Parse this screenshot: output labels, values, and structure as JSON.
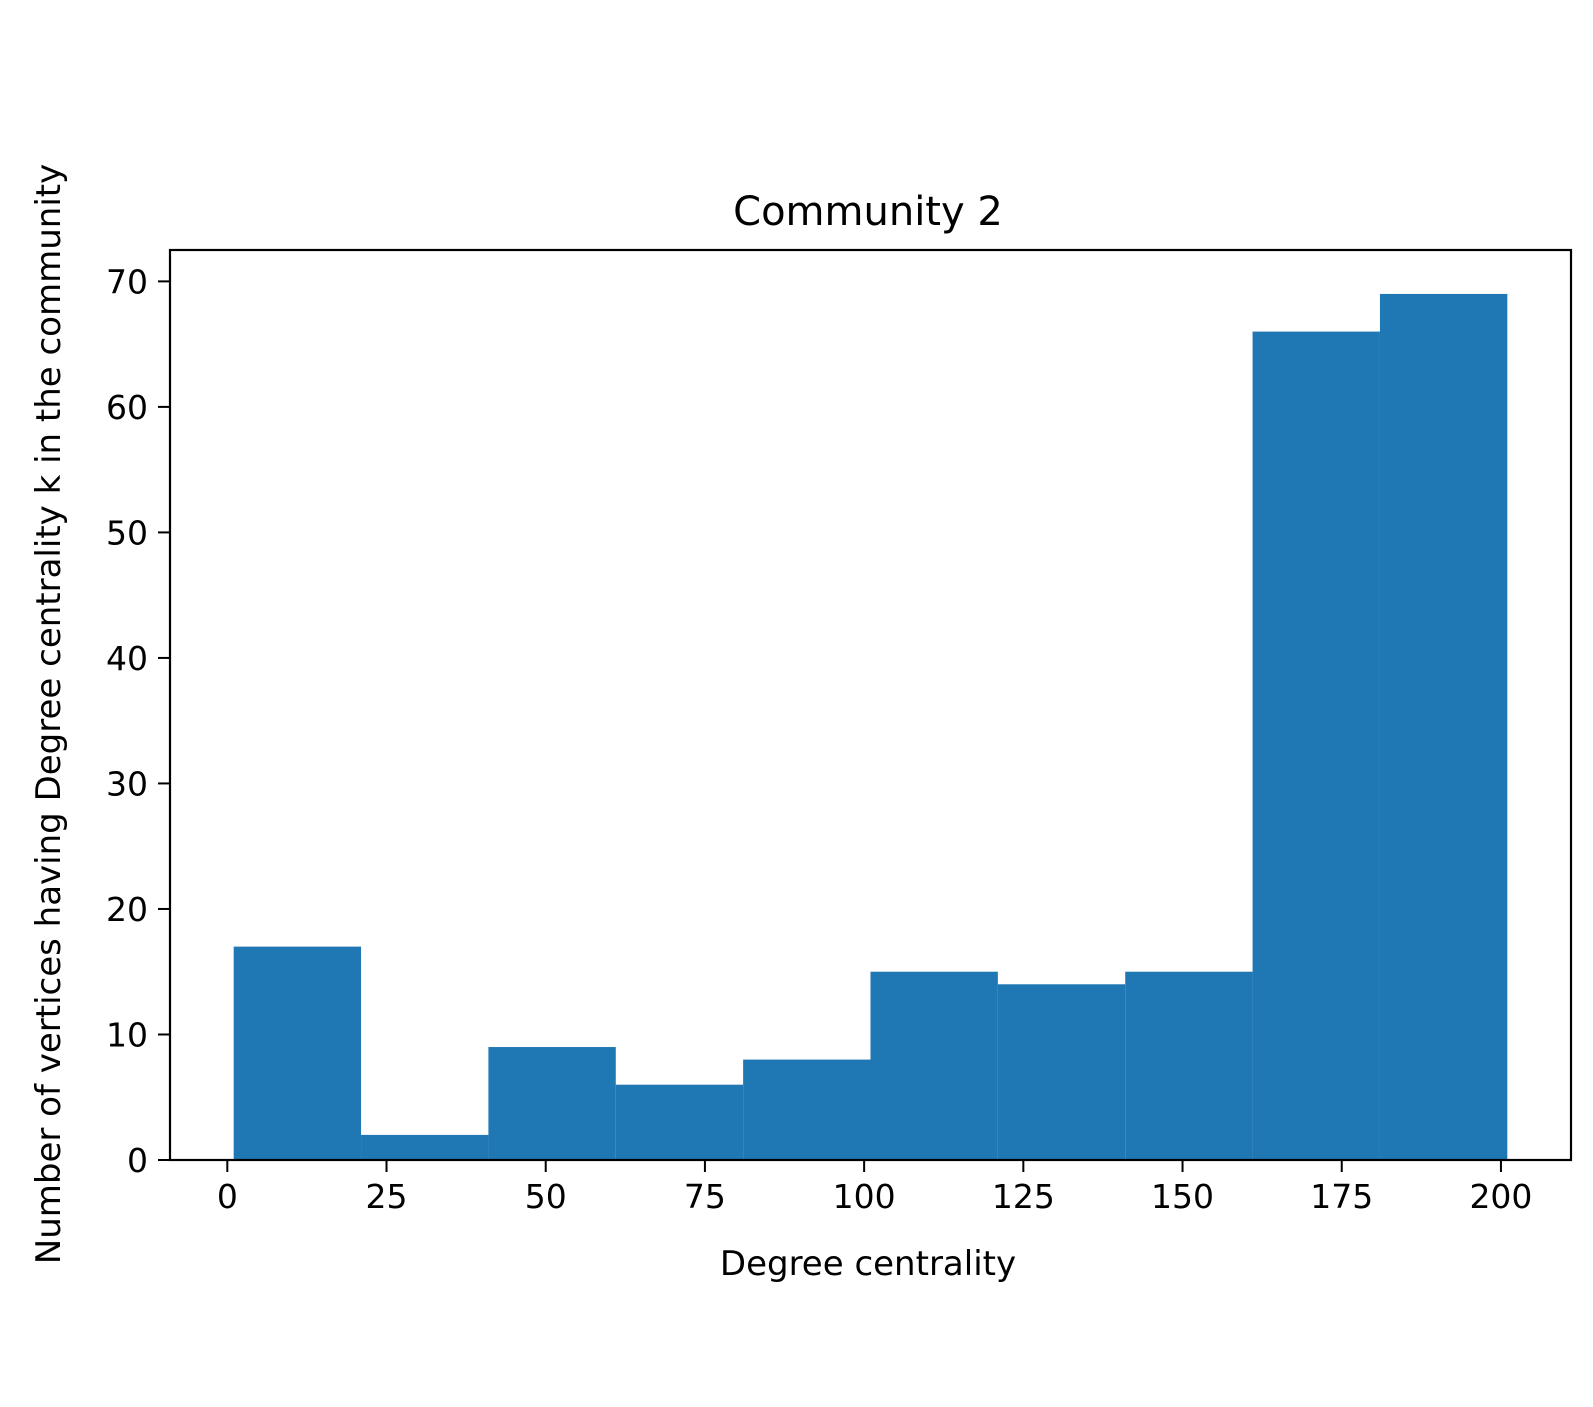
{
  "chart_data": {
    "type": "bar",
    "title": "Community 2",
    "xlabel": "Degree centrality",
    "ylabel": "Number of vertices having Degree centrality k in the community",
    "bins": [
      {
        "x0": 1,
        "x1": 21,
        "count": 17
      },
      {
        "x0": 21,
        "x1": 41,
        "count": 2
      },
      {
        "x0": 41,
        "x1": 61,
        "count": 9
      },
      {
        "x0": 61,
        "x1": 81,
        "count": 6
      },
      {
        "x0": 81,
        "x1": 101,
        "count": 8
      },
      {
        "x0": 101,
        "x1": 121,
        "count": 15
      },
      {
        "x0": 121,
        "x1": 141,
        "count": 14
      },
      {
        "x0": 141,
        "x1": 161,
        "count": 15
      },
      {
        "x0": 161,
        "x1": 181,
        "count": 66
      },
      {
        "x0": 181,
        "x1": 201,
        "count": 69
      }
    ],
    "xlim": [
      -9,
      211
    ],
    "ylim": [
      0,
      72.5
    ],
    "xticks": [
      "0",
      "25",
      "50",
      "75",
      "100",
      "125",
      "150",
      "175",
      "200"
    ],
    "yticks": [
      "0",
      "10",
      "20",
      "30",
      "40",
      "50",
      "60",
      "70"
    ],
    "bar_color": "#1f77b4",
    "grid": false
  }
}
